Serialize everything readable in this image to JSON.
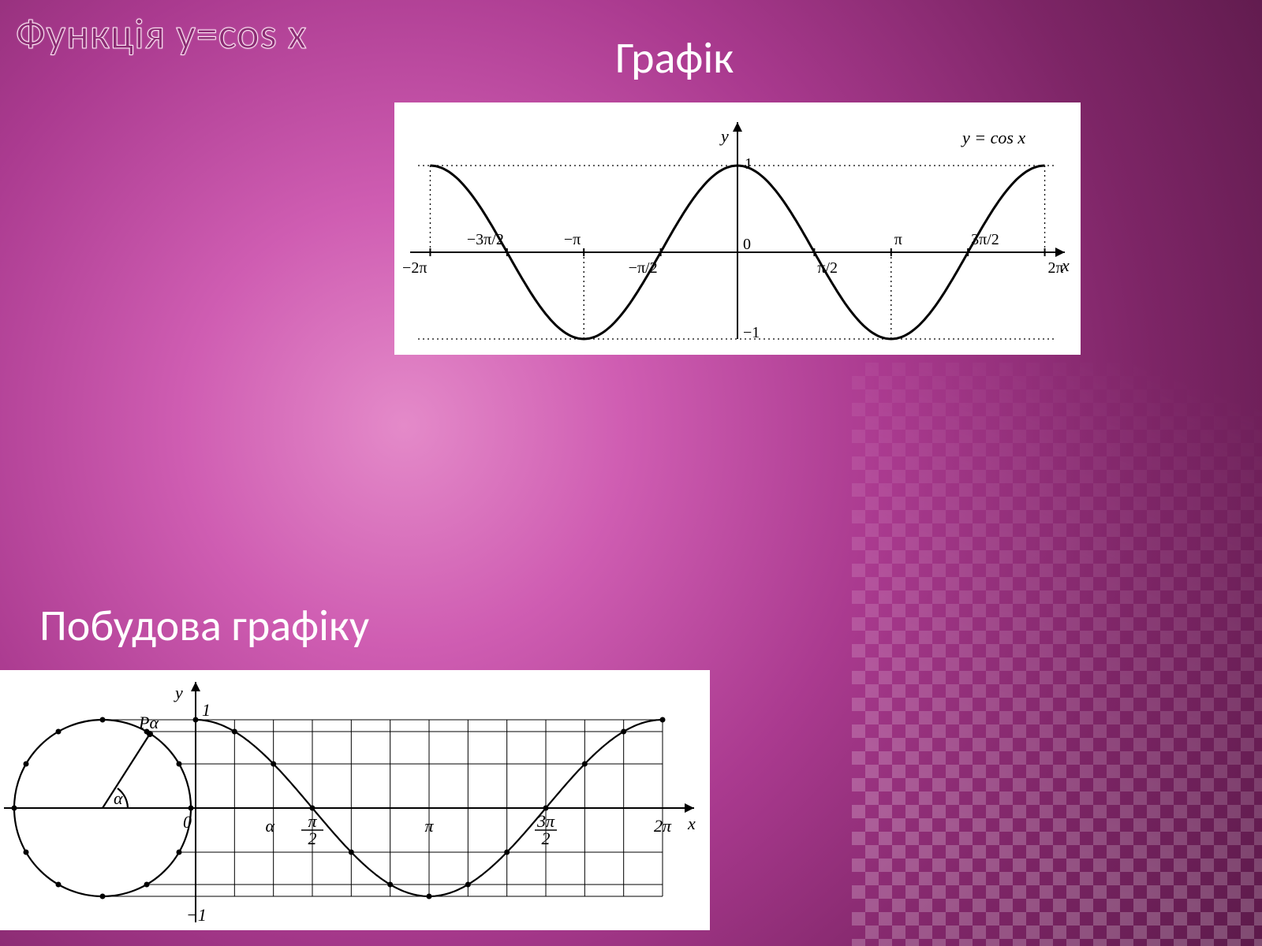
{
  "title": "Функція y=cos x",
  "labels": {
    "graph": "Графік",
    "construction": "Побудова графіку"
  },
  "cos_chart": {
    "type": "line",
    "function_label": "y = cos x",
    "y_axis_label": "y",
    "x_axis_label": "x",
    "origin_label": "0",
    "amplitude": 1,
    "y_top_label": "1",
    "y_bottom_label": "−1",
    "x_ticks": [
      "−2π",
      "−3π/2",
      "−π",
      "−π/2",
      "π/2",
      "π",
      "3π/2",
      "2π"
    ],
    "x_domain": [
      -6.2832,
      6.2832
    ],
    "ylim": [
      -1,
      1
    ],
    "curve_color": "#000000",
    "background_color": "#ffffff",
    "line_width": 3,
    "dotted_dash": "2 4"
  },
  "construction_chart": {
    "type": "line",
    "y_axis_label": "y",
    "x_axis_label": "x",
    "y_top_label": "1",
    "y_bottom_label": "−1",
    "origin_label": "0",
    "angle_label": "α",
    "point_label": "Pα",
    "x_ticks": [
      "α",
      "π/2",
      "π",
      "3π/2",
      "2π"
    ],
    "x_domain": [
      0,
      6.2832
    ],
    "ylim": [
      -1,
      1
    ],
    "circle_divisions": 12,
    "curve_color": "#000000",
    "grid_color": "#000000",
    "background_color": "#ffffff",
    "line_width": 2.2
  },
  "layout": {
    "slide_size": [
      1600,
      1200
    ],
    "title_fontsize": 54,
    "subtitle_fontsize": 56,
    "bg_gradient_center": "#e48ac9",
    "bg_gradient_edge": "#5c1a4a",
    "pattern_opacity": 0.22
  }
}
